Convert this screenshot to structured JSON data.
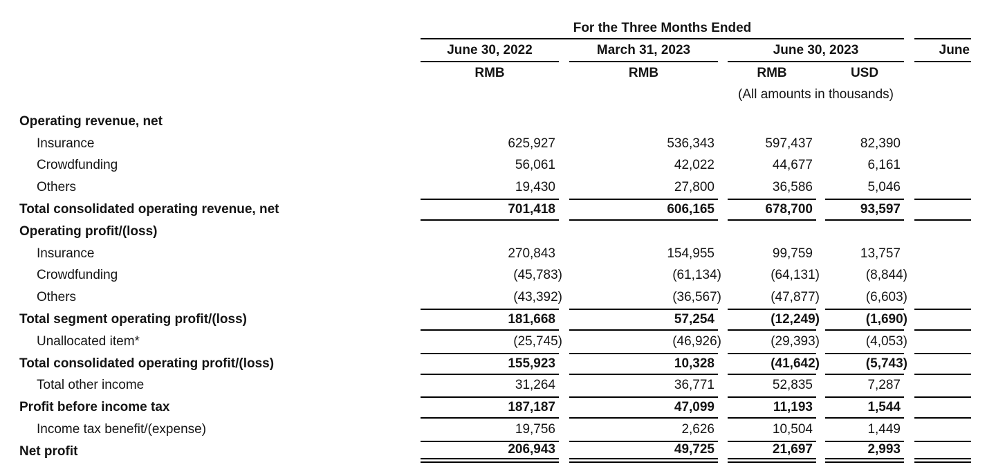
{
  "table": {
    "period_header": "For the Three Months Ended",
    "note": "(All amounts in thousands)",
    "columns": [
      {
        "label": "June 30, 2022",
        "unit": "RMB"
      },
      {
        "label": "March 31, 2023",
        "unit": "RMB"
      },
      {
        "label": "June 30, 2023",
        "unit": "RMB"
      },
      {
        "label": "",
        "unit": "USD"
      },
      {
        "label": "June",
        "unit": ""
      }
    ],
    "rows": [
      {
        "label": "Operating revenue, net"
      },
      {
        "label": "Insurance",
        "values": [
          "625,927",
          "536,343",
          "597,437",
          "82,390"
        ]
      },
      {
        "label": "Crowdfunding",
        "values": [
          "56,061",
          "42,022",
          "44,677",
          "6,161"
        ]
      },
      {
        "label": "Others",
        "values": [
          "19,430",
          "27,800",
          "36,586",
          "5,046"
        ]
      },
      {
        "label": "Total consolidated operating revenue, net",
        "values": [
          "701,418",
          "606,165",
          "678,700",
          "93,597"
        ]
      },
      {
        "label": "Operating profit/(loss)"
      },
      {
        "label": "Insurance",
        "values": [
          "270,843",
          "154,955",
          "99,759",
          "13,757"
        ]
      },
      {
        "label": "Crowdfunding",
        "values": [
          "(45,783)",
          "(61,134)",
          "(64,131)",
          "(8,844)"
        ]
      },
      {
        "label": "Others",
        "values": [
          "(43,392)",
          "(36,567)",
          "(47,877)",
          "(6,603)"
        ]
      },
      {
        "label": "Total segment operating profit/(loss)",
        "values": [
          "181,668",
          "57,254",
          "(12,249)",
          "(1,690)"
        ]
      },
      {
        "label": "Unallocated item*",
        "values": [
          "(25,745)",
          "(46,926)",
          "(29,393)",
          "(4,053)"
        ]
      },
      {
        "label": "Total consolidated operating profit/(loss)",
        "values": [
          "155,923",
          "10,328",
          "(41,642)",
          "(5,743)"
        ]
      },
      {
        "label": "Total other income",
        "values": [
          "31,264",
          "36,771",
          "52,835",
          "7,287"
        ]
      },
      {
        "label": "Profit before income tax",
        "values": [
          "187,187",
          "47,099",
          "11,193",
          "1,544"
        ]
      },
      {
        "label": "Income tax benefit/(expense)",
        "values": [
          "19,756",
          "2,626",
          "10,504",
          "1,449"
        ]
      },
      {
        "label": "Net profit",
        "values": [
          "206,943",
          "49,725",
          "21,697",
          "2,993"
        ]
      }
    ]
  }
}
